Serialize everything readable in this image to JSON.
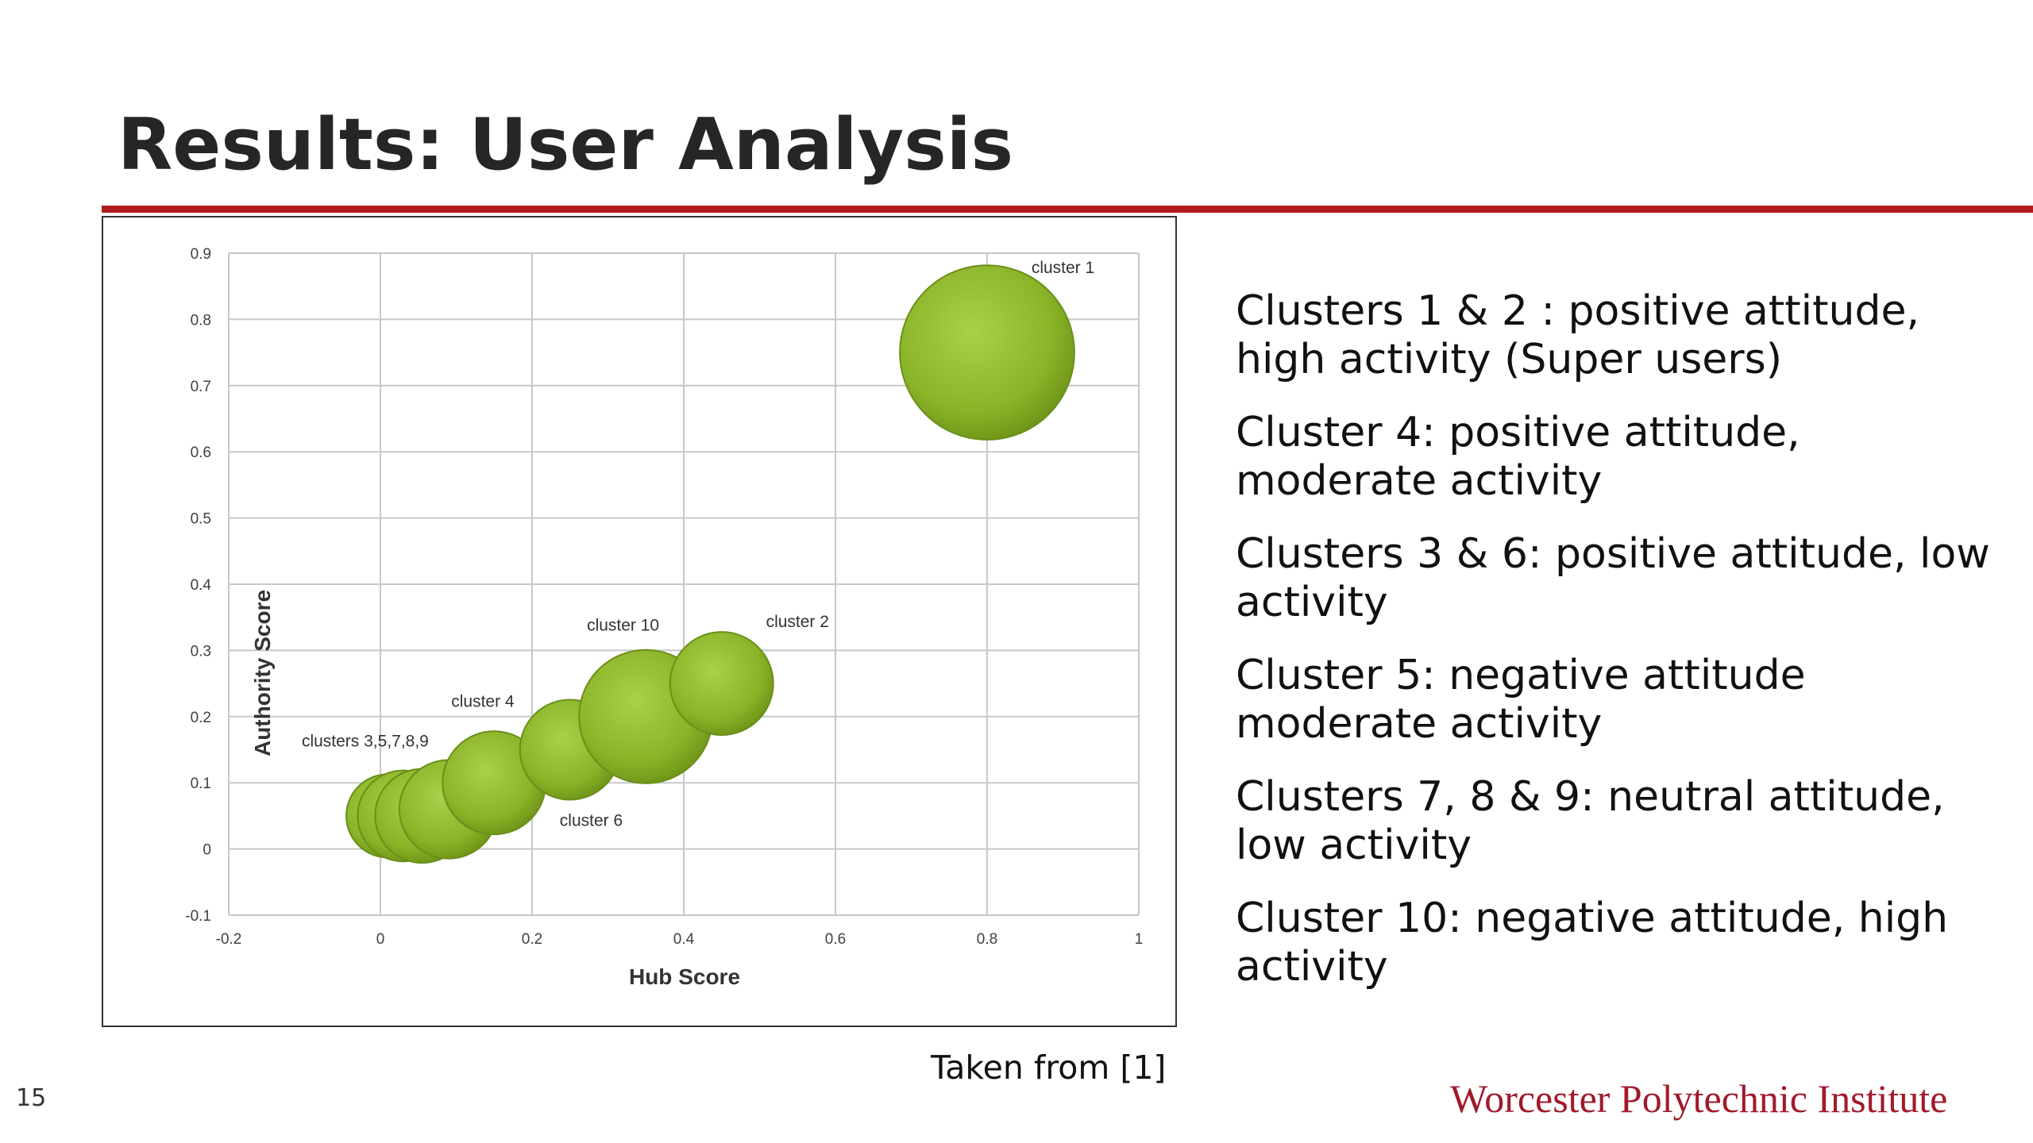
{
  "slide": {
    "title": "Results: User Analysis",
    "page_number": "15",
    "caption": "Taken from [1]",
    "institution": "Worcester Polytechnic Institute",
    "accent_color": "#b31b1b",
    "bullets": [
      "Clusters 1 & 2 : positive attitude, high activity (Super users)",
      "Cluster 4: positive attitude, moderate activity",
      "Clusters 3 & 6: positive attitude, low activity",
      "Cluster 5: negative attitude moderate activity",
      "Clusters 7, 8 & 9: neutral attitude, low activity",
      "Cluster 10: negative attitude, high activity"
    ]
  },
  "chart_data": {
    "type": "bubble",
    "xlabel": "Hub Score",
    "ylabel": "Authority Score",
    "xlim": [
      -0.2,
      1
    ],
    "ylim": [
      -0.1,
      0.9
    ],
    "xticks": [
      "-0.2",
      "0",
      "0.2",
      "0.4",
      "0.6",
      "0.8",
      "1"
    ],
    "yticks": [
      "-0.1",
      "0",
      "0.1",
      "0.2",
      "0.3",
      "0.4",
      "0.5",
      "0.6",
      "0.7",
      "0.8",
      "0.9"
    ],
    "grid": true,
    "bubble_color": "#8fb82a",
    "points": [
      {
        "x": 0.01,
        "y": 0.05,
        "size": 0.055
      },
      {
        "x": 0.03,
        "y": 0.05,
        "size": 0.06
      },
      {
        "x": 0.055,
        "y": 0.05,
        "size": 0.062
      },
      {
        "x": 0.09,
        "y": 0.06,
        "size": 0.065
      },
      {
        "x": 0.15,
        "y": 0.1,
        "size": 0.068
      },
      {
        "x": 0.25,
        "y": 0.15,
        "size": 0.066
      },
      {
        "x": 0.35,
        "y": 0.2,
        "size": 0.088
      },
      {
        "x": 0.45,
        "y": 0.25,
        "size": 0.068
      },
      {
        "x": 0.8,
        "y": 0.75,
        "size": 0.115
      }
    ],
    "labels": [
      {
        "text": "clusters 3,5,7,8,9",
        "x": -0.02,
        "y": 0.155
      },
      {
        "text": "cluster 4",
        "x": 0.135,
        "y": 0.215
      },
      {
        "text": "cluster 6",
        "x": 0.278,
        "y": 0.035
      },
      {
        "text": "cluster 10",
        "x": 0.32,
        "y": 0.33
      },
      {
        "text": "cluster 2",
        "x": 0.55,
        "y": 0.335
      },
      {
        "text": "cluster 1",
        "x": 0.9,
        "y": 0.87
      }
    ]
  }
}
